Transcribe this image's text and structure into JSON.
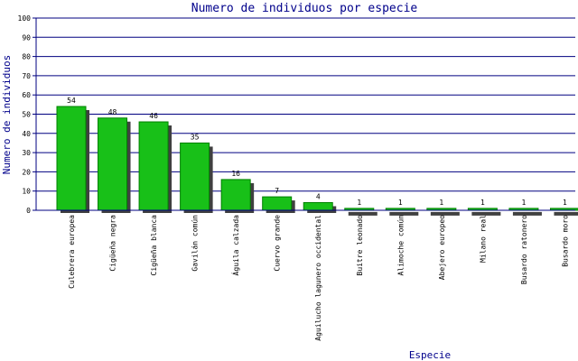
{
  "chart_data": {
    "type": "bar",
    "title": "Numero de individuos por especie",
    "xlabel": "Especie",
    "ylabel": "Numero de individuos",
    "ylim": [
      0,
      100
    ],
    "yticks": [
      "0",
      "10",
      "20",
      "30",
      "40",
      "50",
      "60",
      "70",
      "80",
      "90",
      "100"
    ],
    "grid": true,
    "categories": [
      "Culebrera europea",
      "Cigüeña negra",
      "Cigüeña blanca",
      "Gavilán común",
      "Águila calzada",
      "Cuervo grande",
      "Aguilucho lagunero occidental",
      "Buitre leonado",
      "Alimoche común",
      "Abejero europeo",
      "Milano real",
      "Busardo ratonero",
      "Busardo moro"
    ],
    "values": [
      54,
      48,
      46,
      35,
      16,
      7,
      4,
      1,
      1,
      1,
      1,
      1,
      1
    ],
    "data_labels": [
      "54",
      "48",
      "46",
      "35",
      "16",
      "7",
      "4",
      "1",
      "1",
      "1",
      "1",
      "1",
      "1"
    ]
  },
  "colors": {
    "title": "#00008b",
    "axis": "#000080",
    "grid": "#000080",
    "bar": "#18c018",
    "bar_edge": "#008000",
    "shadow": "#404040",
    "text": "#000000"
  }
}
